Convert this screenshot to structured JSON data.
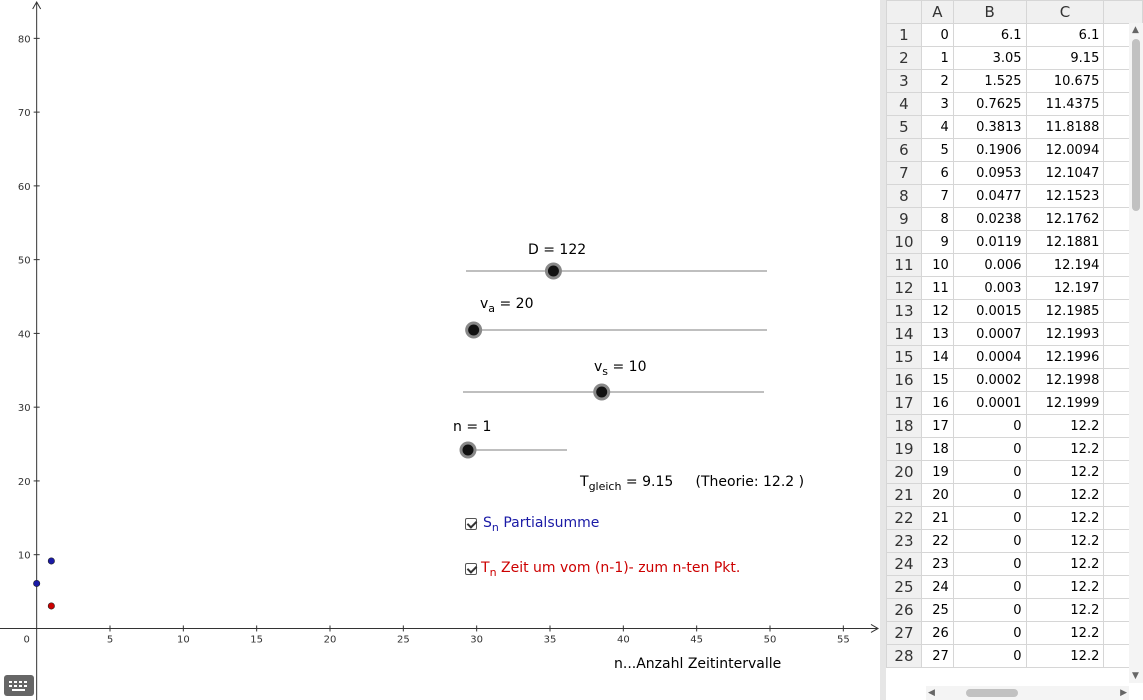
{
  "chart_data": {
    "type": "scatter",
    "xlabel": "n...Anzahl Zeitintervalle",
    "ylabel": "",
    "xlim": [
      -2.5,
      57.5
    ],
    "ylim": [
      -9.7,
      85.2
    ],
    "x_ticks": [
      0,
      5,
      10,
      15,
      20,
      25,
      30,
      35,
      40,
      45,
      50,
      55
    ],
    "y_ticks": [
      10,
      20,
      30,
      40,
      50,
      60,
      70,
      80
    ],
    "grid": false,
    "series": [
      {
        "name": "Sn Partialsumme",
        "color": "#1a1aa6",
        "points": [
          [
            0,
            6.1
          ],
          [
            1,
            9.15
          ]
        ]
      },
      {
        "name": "Tn Zeit um vom (n-1)- zum n-ten Pkt.",
        "color": "#cc0000",
        "points": [
          [
            1,
            3.05
          ]
        ]
      }
    ]
  },
  "sliders": {
    "D": {
      "label": "D = 122",
      "value": 122
    },
    "va": {
      "label_main": "v",
      "label_sub": "a",
      "label_rest": " = 20",
      "value": 20
    },
    "vs": {
      "label_main": "v",
      "label_sub": "s",
      "label_rest": " = 10",
      "value": 10
    },
    "n": {
      "label": "n = 1",
      "value": 1
    }
  },
  "tgleich": {
    "main": "T",
    "sub": "gleich",
    "rest": " = 9.15     (Theorie: 12.2 )"
  },
  "checkboxes": {
    "sn": {
      "main": "S",
      "sub": "n",
      "rest": " Partialsumme",
      "checked": true,
      "color": "#1a1aa6"
    },
    "tn": {
      "main": "T",
      "sub": "n",
      "rest": " Zeit um vom (n-1)- zum n-ten Pkt.",
      "checked": true,
      "color": "#cc0000"
    }
  },
  "spreadsheet": {
    "columns": [
      "A",
      "B",
      "C"
    ],
    "rows": [
      [
        "0",
        "6.1",
        "6.1"
      ],
      [
        "1",
        "3.05",
        "9.15"
      ],
      [
        "2",
        "1.525",
        "10.675"
      ],
      [
        "3",
        "0.7625",
        "11.4375"
      ],
      [
        "4",
        "0.3813",
        "11.8188"
      ],
      [
        "5",
        "0.1906",
        "12.0094"
      ],
      [
        "6",
        "0.0953",
        "12.1047"
      ],
      [
        "7",
        "0.0477",
        "12.1523"
      ],
      [
        "8",
        "0.0238",
        "12.1762"
      ],
      [
        "9",
        "0.0119",
        "12.1881"
      ],
      [
        "10",
        "0.006",
        "12.194"
      ],
      [
        "11",
        "0.003",
        "12.197"
      ],
      [
        "12",
        "0.0015",
        "12.1985"
      ],
      [
        "13",
        "0.0007",
        "12.1993"
      ],
      [
        "14",
        "0.0004",
        "12.1996"
      ],
      [
        "15",
        "0.0002",
        "12.1998"
      ],
      [
        "16",
        "0.0001",
        "12.1999"
      ],
      [
        "17",
        "0",
        "12.2"
      ],
      [
        "18",
        "0",
        "12.2"
      ],
      [
        "19",
        "0",
        "12.2"
      ],
      [
        "20",
        "0",
        "12.2"
      ],
      [
        "21",
        "0",
        "12.2"
      ],
      [
        "22",
        "0",
        "12.2"
      ],
      [
        "23",
        "0",
        "12.2"
      ],
      [
        "24",
        "0",
        "12.2"
      ],
      [
        "25",
        "0",
        "12.2"
      ],
      [
        "26",
        "0",
        "12.2"
      ],
      [
        "27",
        "0",
        "12.2"
      ]
    ]
  },
  "icons": {
    "keyboard": "keyboard-icon"
  }
}
